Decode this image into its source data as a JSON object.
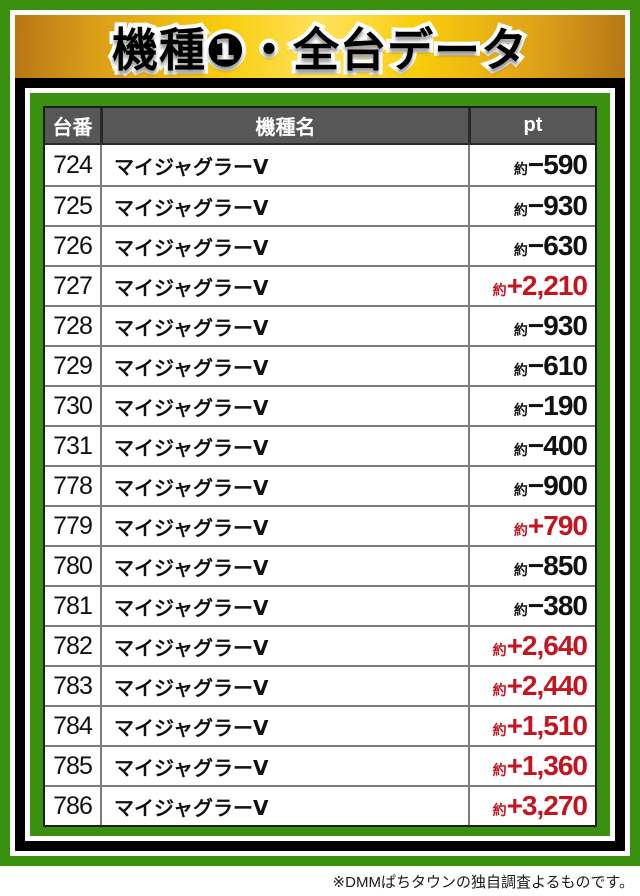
{
  "banner": {
    "title": "機種❶・全台データ"
  },
  "chart_data": {
    "type": "table",
    "title": "機種❶・全台データ",
    "columns": [
      "台番",
      "機種名",
      "pt"
    ],
    "approx_prefix": "約",
    "rows": [
      {
        "no": "724",
        "name": "マイジャグラーⅤ",
        "pt": "−590",
        "positive": false
      },
      {
        "no": "725",
        "name": "マイジャグラーⅤ",
        "pt": "−930",
        "positive": false
      },
      {
        "no": "726",
        "name": "マイジャグラーⅤ",
        "pt": "−630",
        "positive": false
      },
      {
        "no": "727",
        "name": "マイジャグラーⅤ",
        "pt": "+2,210",
        "positive": true
      },
      {
        "no": "728",
        "name": "マイジャグラーⅤ",
        "pt": "−930",
        "positive": false
      },
      {
        "no": "729",
        "name": "マイジャグラーⅤ",
        "pt": "−610",
        "positive": false
      },
      {
        "no": "730",
        "name": "マイジャグラーⅤ",
        "pt": "−190",
        "positive": false
      },
      {
        "no": "731",
        "name": "マイジャグラーⅤ",
        "pt": "−400",
        "positive": false
      },
      {
        "no": "778",
        "name": "マイジャグラーⅤ",
        "pt": "−900",
        "positive": false
      },
      {
        "no": "779",
        "name": "マイジャグラーⅤ",
        "pt": "+790",
        "positive": true
      },
      {
        "no": "780",
        "name": "マイジャグラーⅤ",
        "pt": "−850",
        "positive": false
      },
      {
        "no": "781",
        "name": "マイジャグラーⅤ",
        "pt": "−380",
        "positive": false
      },
      {
        "no": "782",
        "name": "マイジャグラーⅤ",
        "pt": "+2,640",
        "positive": true
      },
      {
        "no": "783",
        "name": "マイジャグラーⅤ",
        "pt": "+2,440",
        "positive": true
      },
      {
        "no": "784",
        "name": "マイジャグラーⅤ",
        "pt": "+1,510",
        "positive": true
      },
      {
        "no": "785",
        "name": "マイジャグラーⅤ",
        "pt": "+1,360",
        "positive": true
      },
      {
        "no": "786",
        "name": "マイジャグラーⅤ",
        "pt": "+3,270",
        "positive": true
      }
    ]
  },
  "footnote": "※DMMぱちタウンの独自調査よるものです。",
  "colors": {
    "frame_green": "#3a9110",
    "header_gray": "#575757",
    "negative_text": "#111111",
    "positive_red": "#c41420",
    "banner_gold_edge": "#b67714",
    "banner_gold_step": "#dda019",
    "banner_gold_mid": "#f8cd0c",
    "banner_gold_center": "#ffe25c"
  }
}
